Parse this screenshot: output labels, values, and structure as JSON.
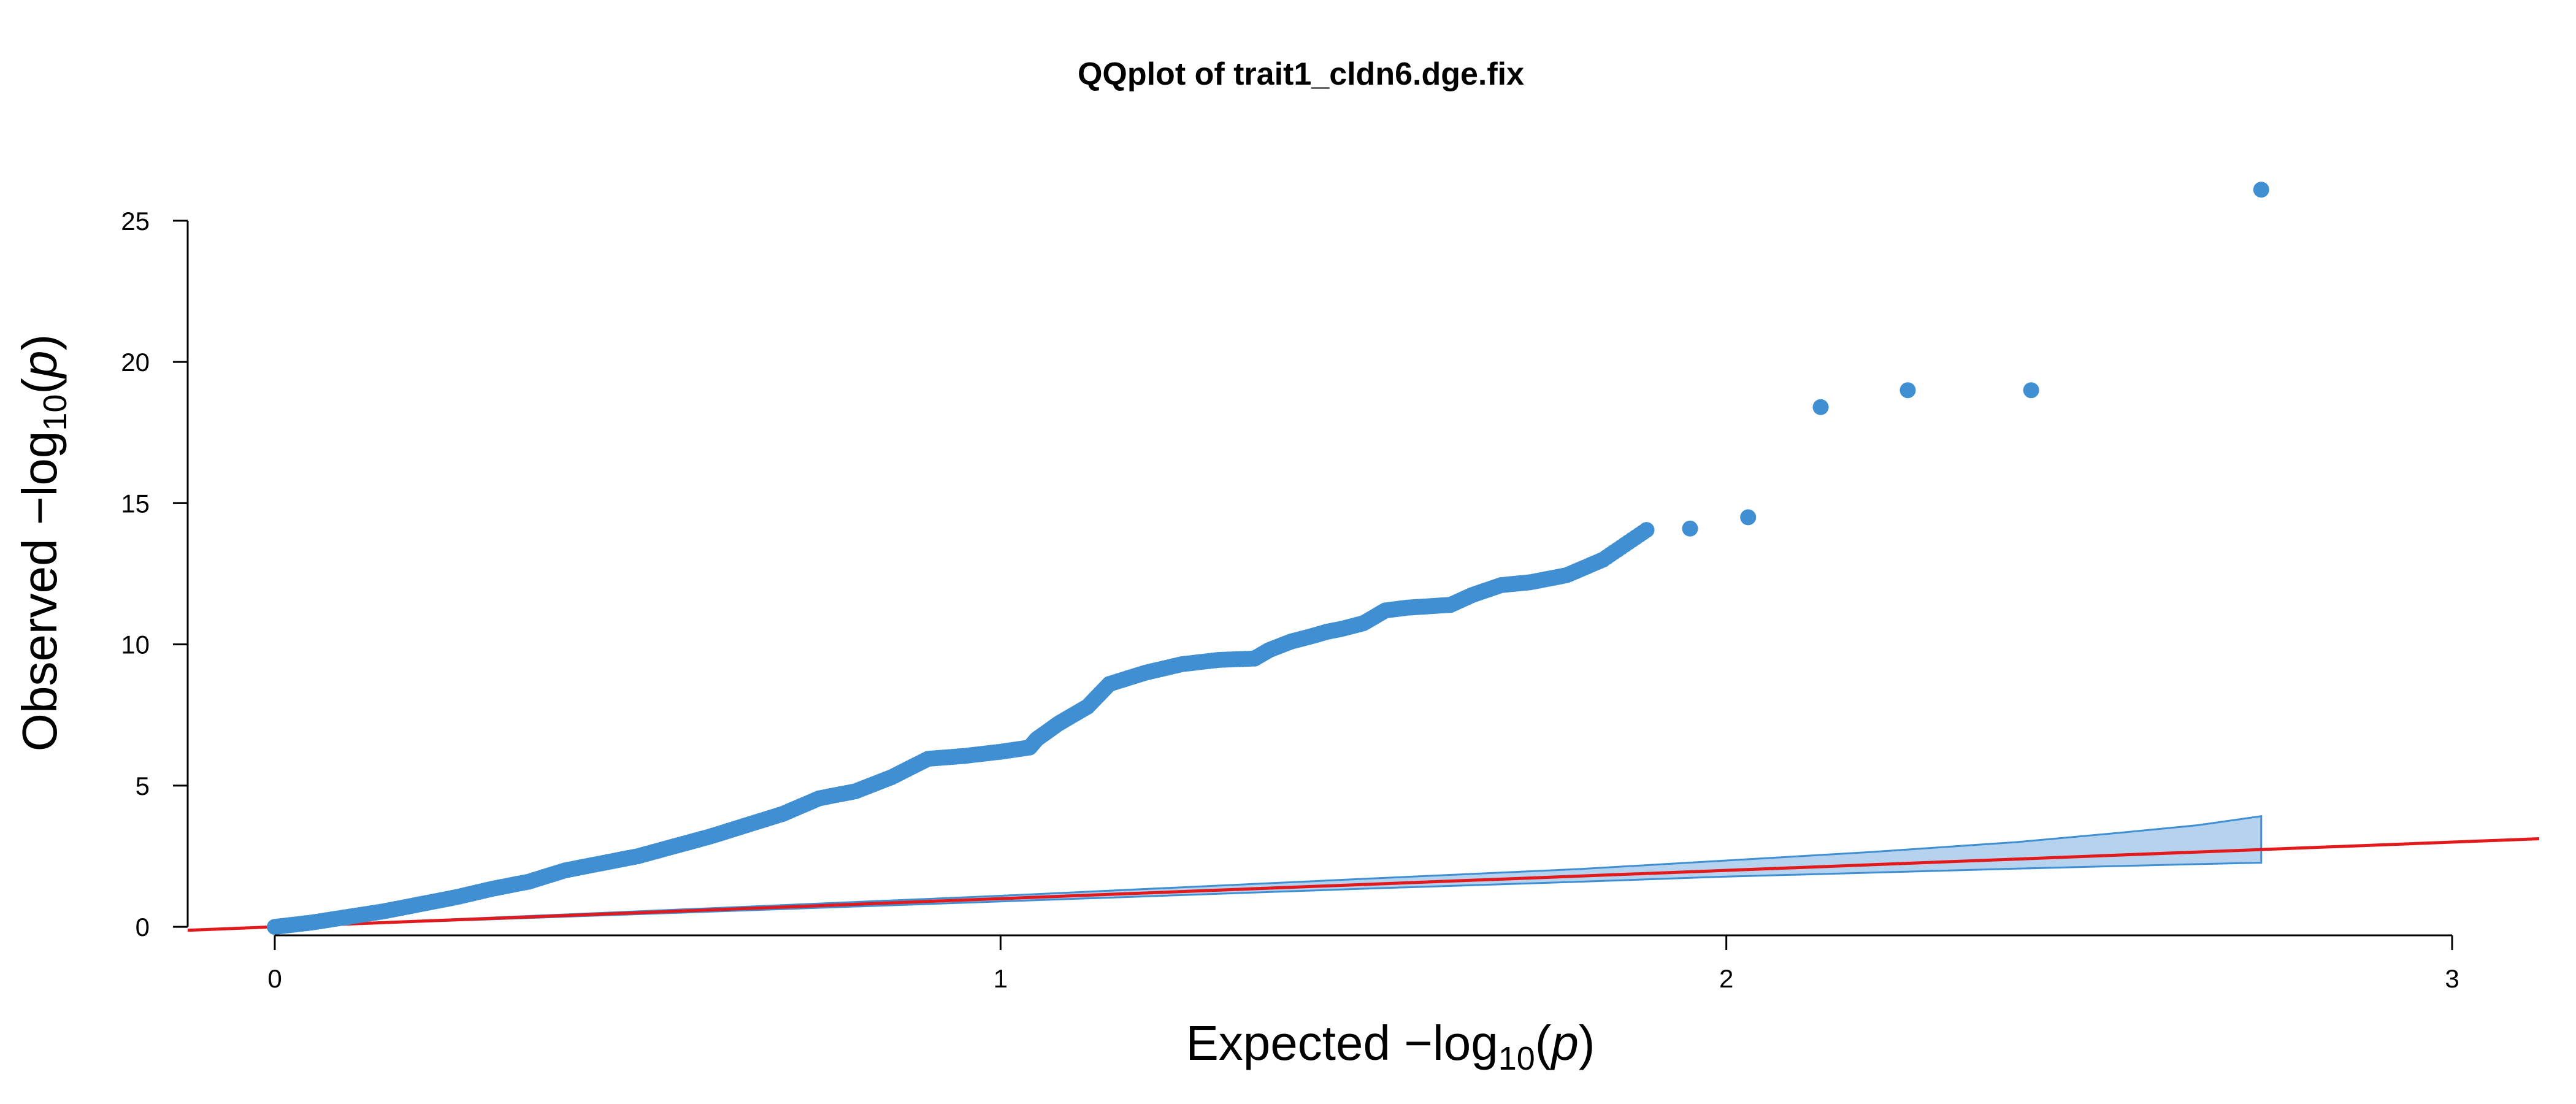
{
  "chart_data": {
    "type": "scatter",
    "title": "QQplot of trait1_cldn6.dge.fix",
    "xlabel": {
      "prefix": "Expected  −log",
      "sub": "10",
      "open": "(",
      "var": "p",
      "close": ")"
    },
    "ylabel": {
      "prefix": "Observed  −log",
      "sub": "10",
      "open": "(",
      "var": "p",
      "close": ")"
    },
    "xlim": [
      -0.12,
      3.12
    ],
    "ylim": [
      -0.3,
      26.3
    ],
    "x_axis_range": [
      0,
      3
    ],
    "y_axis_range": [
      0,
      25
    ],
    "x_ticks": [
      0,
      1,
      2,
      3
    ],
    "x_tick_labels": [
      "0",
      "1",
      "2",
      "3"
    ],
    "y_ticks": [
      0,
      5,
      10,
      15,
      20,
      25
    ],
    "y_tick_labels": [
      "0",
      "5",
      "10",
      "15",
      "20",
      "25"
    ],
    "grid": false,
    "colors": {
      "points": "#3F8FD2",
      "band_fill": "#B5D2EE",
      "band_stroke": "#3F8FD2",
      "reference_line": "#E3191C"
    },
    "reference_line": {
      "slope": 1,
      "intercept": 0
    },
    "confidence_band": {
      "x": [
        0,
        0.5,
        1.0,
        1.5,
        1.8,
        2.0,
        2.2,
        2.4,
        2.55,
        2.65,
        2.737
      ],
      "lower": [
        0,
        0.45,
        0.9,
        1.35,
        1.6,
        1.78,
        1.92,
        2.06,
        2.16,
        2.22,
        2.27
      ],
      "upper": [
        0,
        0.55,
        1.1,
        1.7,
        2.05,
        2.35,
        2.65,
        3.0,
        3.35,
        3.6,
        3.92
      ]
    },
    "series": [
      {
        "x": [
          0,
          0.05,
          0.1,
          0.15,
          0.2,
          0.25,
          0.3,
          0.35,
          0.4,
          0.45,
          0.5,
          0.55,
          0.6,
          0.65,
          0.7,
          0.75,
          0.8,
          0.85,
          0.9,
          0.95,
          1.0,
          1.04,
          1.05,
          1.08,
          1.1,
          1.12,
          1.15,
          1.2,
          1.25,
          1.3,
          1.35,
          1.37,
          1.4,
          1.43,
          1.45,
          1.47,
          1.5,
          1.53,
          1.56,
          1.59,
          1.62,
          1.65,
          1.69,
          1.73,
          1.78,
          1.83,
          1.89,
          1.95,
          2.03,
          2.13,
          2.25,
          2.42,
          2.737
        ],
        "y": [
          0,
          0.15,
          0.35,
          0.55,
          0.8,
          1.05,
          1.35,
          1.6,
          2.0,
          2.25,
          2.5,
          2.85,
          3.2,
          3.6,
          4.0,
          4.55,
          4.8,
          5.3,
          5.95,
          6.05,
          6.2,
          6.35,
          6.65,
          7.2,
          7.5,
          7.8,
          8.6,
          9.0,
          9.3,
          9.45,
          9.5,
          9.8,
          10.1,
          10.3,
          10.45,
          10.55,
          10.75,
          11.2,
          11.3,
          11.35,
          11.4,
          11.75,
          12.1,
          12.2,
          12.45,
          13.0,
          14.05,
          14.1,
          14.5,
          18.4,
          19.0,
          19.0,
          26.1
        ]
      }
    ]
  }
}
